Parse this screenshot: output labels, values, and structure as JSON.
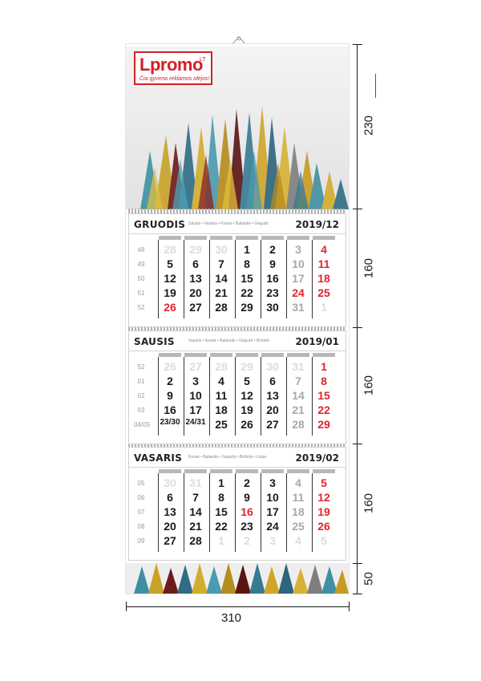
{
  "logo": {
    "word": "Lpromo",
    "suffix": "LT",
    "tagline": "Čia gyvena reklamos idėjos!"
  },
  "months": [
    {
      "name": "GRUODIS",
      "next": "Sausis • Vasaris • Kovas • Balandis • Gegužė",
      "year": "2019/12",
      "weeks": [
        "48",
        "49",
        "50",
        "51",
        "52"
      ],
      "rows": [
        [
          [
            "28",
            "f"
          ],
          [
            "29",
            "f"
          ],
          [
            "30",
            "f"
          ],
          [
            "1",
            ""
          ],
          [
            "2",
            ""
          ],
          [
            "3",
            "g"
          ],
          [
            "4",
            "r"
          ]
        ],
        [
          [
            "5",
            ""
          ],
          [
            "6",
            ""
          ],
          [
            "7",
            ""
          ],
          [
            "8",
            ""
          ],
          [
            "9",
            ""
          ],
          [
            "10",
            "g"
          ],
          [
            "11",
            "r"
          ]
        ],
        [
          [
            "12",
            ""
          ],
          [
            "13",
            ""
          ],
          [
            "14",
            ""
          ],
          [
            "15",
            ""
          ],
          [
            "16",
            ""
          ],
          [
            "17",
            "g"
          ],
          [
            "18",
            "r"
          ]
        ],
        [
          [
            "19",
            ""
          ],
          [
            "20",
            ""
          ],
          [
            "21",
            ""
          ],
          [
            "22",
            ""
          ],
          [
            "23",
            ""
          ],
          [
            "24",
            "r"
          ],
          [
            "25",
            "r"
          ]
        ],
        [
          [
            "26",
            "r"
          ],
          [
            "27",
            ""
          ],
          [
            "28",
            ""
          ],
          [
            "29",
            ""
          ],
          [
            "30",
            ""
          ],
          [
            "31",
            "g"
          ],
          [
            "1",
            "f"
          ]
        ]
      ]
    },
    {
      "name": "SAUSIS",
      "next": "Vasaris • Kovas • Balandis • Gegužė • Birželis",
      "year": "2019/01",
      "weeks": [
        "52",
        "01",
        "02",
        "03",
        "04/05"
      ],
      "rows": [
        [
          [
            "26",
            "f"
          ],
          [
            "27",
            "f"
          ],
          [
            "28",
            "f"
          ],
          [
            "29",
            "f"
          ],
          [
            "30",
            "f"
          ],
          [
            "31",
            "f"
          ],
          [
            "1",
            "r"
          ]
        ],
        [
          [
            "2",
            ""
          ],
          [
            "3",
            ""
          ],
          [
            "4",
            ""
          ],
          [
            "5",
            ""
          ],
          [
            "6",
            ""
          ],
          [
            "7",
            "g"
          ],
          [
            "8",
            "r"
          ]
        ],
        [
          [
            "9",
            ""
          ],
          [
            "10",
            ""
          ],
          [
            "11",
            ""
          ],
          [
            "12",
            ""
          ],
          [
            "13",
            ""
          ],
          [
            "14",
            "g"
          ],
          [
            "15",
            "r"
          ]
        ],
        [
          [
            "16",
            ""
          ],
          [
            "17",
            ""
          ],
          [
            "18",
            ""
          ],
          [
            "19",
            ""
          ],
          [
            "20",
            ""
          ],
          [
            "21",
            "g"
          ],
          [
            "22",
            "r"
          ]
        ],
        [
          [
            "23/30",
            "sm"
          ],
          [
            "24/31",
            "sm"
          ],
          [
            "25",
            ""
          ],
          [
            "26",
            ""
          ],
          [
            "27",
            ""
          ],
          [
            "28",
            "g"
          ],
          [
            "29",
            "r"
          ]
        ]
      ]
    },
    {
      "name": "VASARIS",
      "next": "Kovas • Balandis • Gegužė • Birželis • Liepa",
      "year": "2019/02",
      "weeks": [
        "05",
        "06",
        "07",
        "08",
        "09"
      ],
      "rows": [
        [
          [
            "30",
            "f"
          ],
          [
            "31",
            "f"
          ],
          [
            "1",
            ""
          ],
          [
            "2",
            ""
          ],
          [
            "3",
            ""
          ],
          [
            "4",
            "g"
          ],
          [
            "5",
            "r"
          ]
        ],
        [
          [
            "6",
            ""
          ],
          [
            "7",
            ""
          ],
          [
            "8",
            ""
          ],
          [
            "9",
            ""
          ],
          [
            "10",
            ""
          ],
          [
            "11",
            "g"
          ],
          [
            "12",
            "r"
          ]
        ],
        [
          [
            "13",
            ""
          ],
          [
            "14",
            ""
          ],
          [
            "15",
            ""
          ],
          [
            "16",
            "r"
          ],
          [
            "17",
            ""
          ],
          [
            "18",
            "g"
          ],
          [
            "19",
            "r"
          ]
        ],
        [
          [
            "20",
            ""
          ],
          [
            "21",
            ""
          ],
          [
            "22",
            ""
          ],
          [
            "23",
            ""
          ],
          [
            "24",
            ""
          ],
          [
            "25",
            "g"
          ],
          [
            "26",
            "r"
          ]
        ],
        [
          [
            "27",
            ""
          ],
          [
            "28",
            ""
          ],
          [
            "1",
            "f"
          ],
          [
            "2",
            "f"
          ],
          [
            "3",
            "f"
          ],
          [
            "4",
            "f"
          ],
          [
            "5",
            "f"
          ]
        ]
      ]
    }
  ],
  "dimensions": {
    "header": "230",
    "month_panel": "160",
    "footer": "50",
    "width": "310"
  }
}
